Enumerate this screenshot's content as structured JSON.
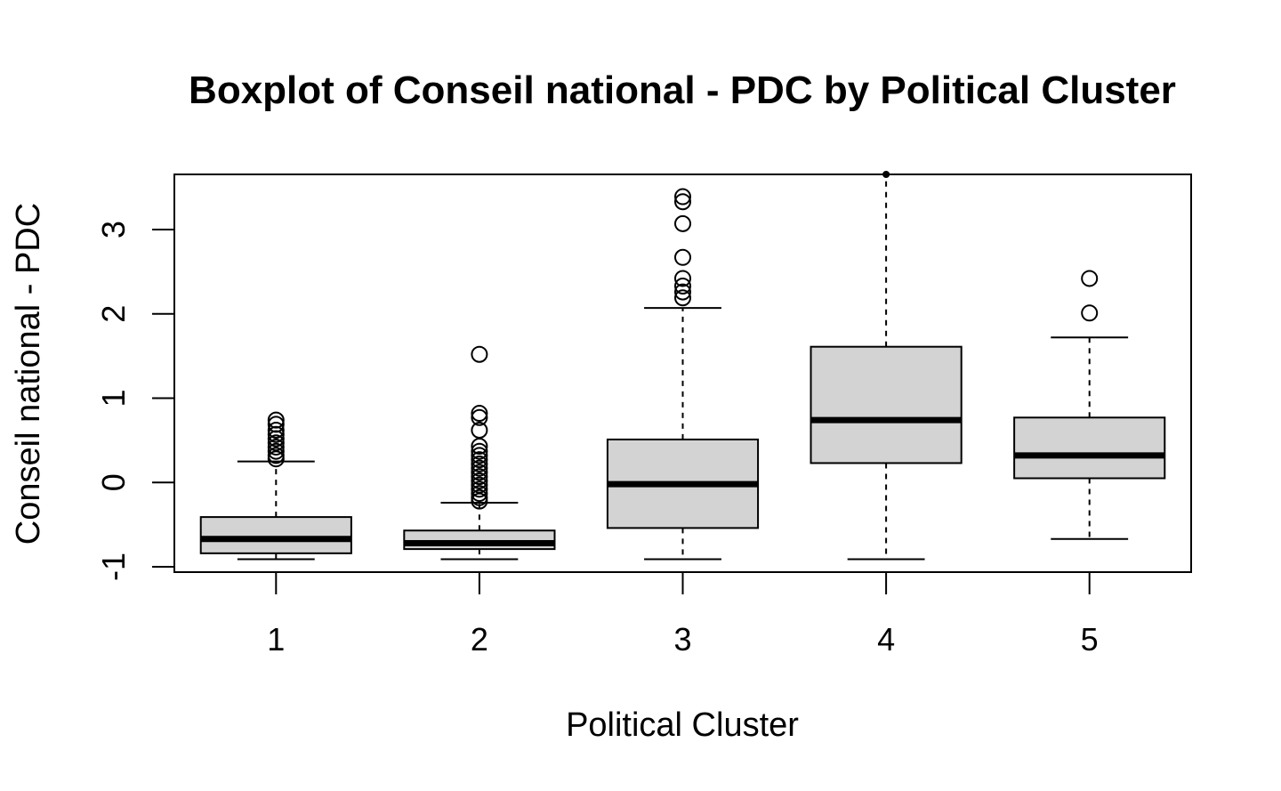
{
  "chart_data": {
    "type": "boxplot",
    "title": "Boxplot of Conseil national - PDC by Political Cluster",
    "xlabel": "Political Cluster",
    "ylabel": "Conseil national - PDC",
    "categories": [
      "1",
      "2",
      "3",
      "4",
      "5"
    ],
    "yticks": [
      -1,
      0,
      1,
      2,
      3
    ],
    "ylim": [
      -1.02,
      3.7
    ],
    "grid": false,
    "box_fill": "#d3d3d3",
    "boxes": [
      {
        "category": "1",
        "whisker_low": -0.91,
        "q1": -0.84,
        "median": -0.67,
        "q3": -0.41,
        "whisker_high": 0.25,
        "outliers": [
          0.28,
          0.32,
          0.37,
          0.42,
          0.47,
          0.52,
          0.57,
          0.62,
          0.69,
          0.74
        ]
      },
      {
        "category": "2",
        "whisker_low": -0.91,
        "q1": -0.79,
        "median": -0.72,
        "q3": -0.57,
        "whisker_high": -0.24,
        "outliers": [
          -0.22,
          -0.18,
          -0.13,
          -0.08,
          -0.03,
          0.02,
          0.07,
          0.12,
          0.17,
          0.22,
          0.27,
          0.32,
          0.37,
          0.43,
          0.62,
          0.77,
          0.82,
          1.52
        ]
      },
      {
        "category": "3",
        "whisker_low": -0.91,
        "q1": -0.54,
        "median": -0.02,
        "q3": 0.51,
        "whisker_high": 2.07,
        "outliers": [
          2.19,
          2.26,
          2.33,
          2.42,
          2.67,
          3.07,
          3.33,
          3.39
        ]
      },
      {
        "category": "4",
        "whisker_low": -0.91,
        "q1": 0.23,
        "median": 0.74,
        "q3": 1.61,
        "whisker_high": 3.7,
        "outliers": [
          3.7
        ]
      },
      {
        "category": "5",
        "whisker_low": -0.67,
        "q1": 0.05,
        "median": 0.32,
        "q3": 0.77,
        "whisker_high": 1.72,
        "outliers": [
          2.01,
          2.42
        ]
      }
    ]
  }
}
